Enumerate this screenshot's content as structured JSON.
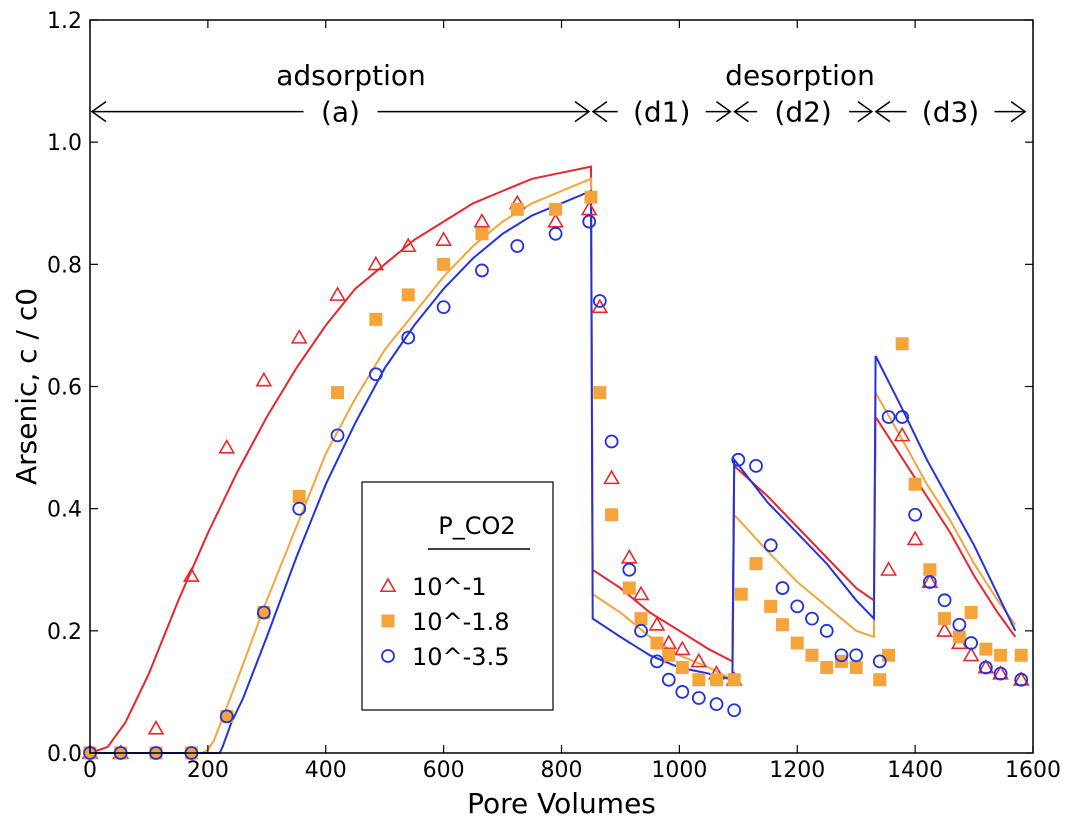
{
  "chart_data": {
    "type": "scatter",
    "title": "",
    "xlabel": "Pore Volumes",
    "ylabel": "Arsenic, c / c0",
    "xlim": [
      0,
      1600
    ],
    "ylim": [
      0,
      1.2
    ],
    "xticks": [
      0,
      200,
      400,
      600,
      800,
      1000,
      1200,
      1400,
      1600
    ],
    "yticks": [
      0.0,
      0.2,
      0.4,
      0.6,
      0.8,
      1.0,
      1.2
    ],
    "xtick_labels": [
      "0",
      "200",
      "400",
      "600",
      "800",
      "1000",
      "1200",
      "1400",
      "1600"
    ],
    "ytick_labels": [
      "0.0",
      "0.2",
      "0.4",
      "0.6",
      "0.8",
      "1.0",
      "1.2"
    ],
    "grid": false,
    "legend": {
      "title": "P_CO2",
      "placement": "lower-center",
      "entries": [
        "10^-1",
        "10^-1.8",
        "10^-3.5"
      ]
    },
    "annotations": {
      "phases": [
        {
          "label": "adsorption",
          "y": 1.05
        },
        {
          "label": "desorption",
          "y": 1.05
        }
      ],
      "segments": [
        {
          "label": "(a)",
          "x0": 0,
          "x1": 850
        },
        {
          "label": "(d1)",
          "x0": 850,
          "x1": 1090
        },
        {
          "label": "(d2)",
          "x0": 1090,
          "x1": 1330
        },
        {
          "label": "(d3)",
          "x0": 1330,
          "x1": 1590
        }
      ]
    },
    "series": [
      {
        "name": "10^-1",
        "color": "#e8262b",
        "marker": "triangle",
        "points": [
          [
            0,
            0
          ],
          [
            52,
            0
          ],
          [
            112,
            0.04
          ],
          [
            172,
            0.29
          ],
          [
            232,
            0.5
          ],
          [
            295,
            0.61
          ],
          [
            355,
            0.68
          ],
          [
            420,
            0.75
          ],
          [
            485,
            0.8
          ],
          [
            540,
            0.83
          ],
          [
            600,
            0.84
          ],
          [
            665,
            0.87
          ],
          [
            725,
            0.9
          ],
          [
            790,
            0.87
          ],
          [
            847,
            0.89
          ],
          [
            865,
            0.73
          ],
          [
            885,
            0.45
          ],
          [
            915,
            0.32
          ],
          [
            935,
            0.26
          ],
          [
            962,
            0.21
          ],
          [
            982,
            0.18
          ],
          [
            1005,
            0.17
          ],
          [
            1033,
            0.15
          ],
          [
            1063,
            0.13
          ],
          [
            1093,
            0.12
          ],
          [
            1355,
            0.3
          ],
          [
            1378,
            0.52
          ],
          [
            1400,
            0.35
          ],
          [
            1425,
            0.28
          ],
          [
            1450,
            0.2
          ],
          [
            1475,
            0.18
          ],
          [
            1495,
            0.16
          ],
          [
            1520,
            0.14
          ],
          [
            1545,
            0.13
          ],
          [
            1580,
            0.12
          ]
        ],
        "fit": [
          [
            0,
            0
          ],
          [
            30,
            0.01
          ],
          [
            60,
            0.05
          ],
          [
            100,
            0.13
          ],
          [
            150,
            0.25
          ],
          [
            200,
            0.36
          ],
          [
            250,
            0.46
          ],
          [
            300,
            0.55
          ],
          [
            350,
            0.63
          ],
          [
            400,
            0.7
          ],
          [
            450,
            0.76
          ],
          [
            500,
            0.8
          ],
          [
            550,
            0.84
          ],
          [
            600,
            0.87
          ],
          [
            650,
            0.9
          ],
          [
            700,
            0.92
          ],
          [
            750,
            0.94
          ],
          [
            800,
            0.95
          ],
          [
            850,
            0.96
          ],
          [
            853,
            0.3
          ],
          [
            900,
            0.27
          ],
          [
            950,
            0.23
          ],
          [
            1000,
            0.2
          ],
          [
            1050,
            0.17
          ],
          [
            1090,
            0.15
          ],
          [
            1093,
            0.47
          ],
          [
            1150,
            0.42
          ],
          [
            1200,
            0.37
          ],
          [
            1250,
            0.32
          ],
          [
            1300,
            0.27
          ],
          [
            1330,
            0.25
          ],
          [
            1333,
            0.55
          ],
          [
            1380,
            0.48
          ],
          [
            1420,
            0.42
          ],
          [
            1460,
            0.36
          ],
          [
            1500,
            0.29
          ],
          [
            1540,
            0.23
          ],
          [
            1570,
            0.19
          ]
        ]
      },
      {
        "name": "10^-1.8",
        "color": "#f5a43c",
        "marker": "square",
        "points": [
          [
            0,
            0
          ],
          [
            52,
            0
          ],
          [
            112,
            0
          ],
          [
            172,
            0
          ],
          [
            232,
            0.06
          ],
          [
            295,
            0.23
          ],
          [
            355,
            0.42
          ],
          [
            420,
            0.59
          ],
          [
            485,
            0.71
          ],
          [
            540,
            0.75
          ],
          [
            600,
            0.8
          ],
          [
            665,
            0.85
          ],
          [
            725,
            0.89
          ],
          [
            790,
            0.89
          ],
          [
            850,
            0.91
          ],
          [
            865,
            0.59
          ],
          [
            885,
            0.39
          ],
          [
            915,
            0.27
          ],
          [
            935,
            0.22
          ],
          [
            962,
            0.18
          ],
          [
            982,
            0.16
          ],
          [
            1005,
            0.14
          ],
          [
            1033,
            0.12
          ],
          [
            1063,
            0.12
          ],
          [
            1093,
            0.12
          ],
          [
            1105,
            0.26
          ],
          [
            1130,
            0.31
          ],
          [
            1155,
            0.24
          ],
          [
            1175,
            0.21
          ],
          [
            1200,
            0.18
          ],
          [
            1225,
            0.16
          ],
          [
            1250,
            0.14
          ],
          [
            1275,
            0.15
          ],
          [
            1300,
            0.14
          ],
          [
            1340,
            0.12
          ],
          [
            1355,
            0.16
          ],
          [
            1378,
            0.67
          ],
          [
            1400,
            0.44
          ],
          [
            1425,
            0.3
          ],
          [
            1450,
            0.22
          ],
          [
            1475,
            0.19
          ],
          [
            1495,
            0.23
          ],
          [
            1520,
            0.17
          ],
          [
            1545,
            0.16
          ],
          [
            1580,
            0.16
          ]
        ],
        "fit": [
          [
            0,
            0
          ],
          [
            190,
            0
          ],
          [
            200,
            0.005
          ],
          [
            210,
            0.02
          ],
          [
            230,
            0.07
          ],
          [
            250,
            0.12
          ],
          [
            300,
            0.25
          ],
          [
            350,
            0.37
          ],
          [
            400,
            0.49
          ],
          [
            450,
            0.58
          ],
          [
            500,
            0.66
          ],
          [
            550,
            0.72
          ],
          [
            600,
            0.78
          ],
          [
            650,
            0.83
          ],
          [
            700,
            0.87
          ],
          [
            750,
            0.9
          ],
          [
            800,
            0.92
          ],
          [
            850,
            0.94
          ],
          [
            853,
            0.26
          ],
          [
            900,
            0.23
          ],
          [
            950,
            0.19
          ],
          [
            1000,
            0.16
          ],
          [
            1050,
            0.14
          ],
          [
            1090,
            0.12
          ],
          [
            1093,
            0.39
          ],
          [
            1150,
            0.33
          ],
          [
            1200,
            0.28
          ],
          [
            1250,
            0.24
          ],
          [
            1300,
            0.2
          ],
          [
            1330,
            0.19
          ],
          [
            1333,
            0.59
          ],
          [
            1380,
            0.51
          ],
          [
            1420,
            0.44
          ],
          [
            1460,
            0.38
          ],
          [
            1500,
            0.31
          ],
          [
            1540,
            0.25
          ],
          [
            1570,
            0.21
          ]
        ]
      },
      {
        "name": "10^-3.5",
        "color": "#2233dd",
        "marker": "circle",
        "points": [
          [
            0,
            0
          ],
          [
            52,
            0
          ],
          [
            112,
            0
          ],
          [
            172,
            0
          ],
          [
            232,
            0.06
          ],
          [
            295,
            0.23
          ],
          [
            355,
            0.4
          ],
          [
            420,
            0.52
          ],
          [
            485,
            0.62
          ],
          [
            540,
            0.68
          ],
          [
            600,
            0.73
          ],
          [
            665,
            0.79
          ],
          [
            725,
            0.83
          ],
          [
            790,
            0.85
          ],
          [
            847,
            0.87
          ],
          [
            865,
            0.74
          ],
          [
            885,
            0.51
          ],
          [
            915,
            0.3
          ],
          [
            935,
            0.2
          ],
          [
            962,
            0.15
          ],
          [
            982,
            0.12
          ],
          [
            1005,
            0.1
          ],
          [
            1033,
            0.09
          ],
          [
            1063,
            0.08
          ],
          [
            1093,
            0.07
          ],
          [
            1100,
            0.48
          ],
          [
            1130,
            0.47
          ],
          [
            1155,
            0.34
          ],
          [
            1175,
            0.27
          ],
          [
            1200,
            0.24
          ],
          [
            1225,
            0.22
          ],
          [
            1250,
            0.2
          ],
          [
            1275,
            0.16
          ],
          [
            1300,
            0.16
          ],
          [
            1340,
            0.15
          ],
          [
            1355,
            0.55
          ],
          [
            1378,
            0.55
          ],
          [
            1400,
            0.39
          ],
          [
            1425,
            0.28
          ],
          [
            1450,
            0.25
          ],
          [
            1475,
            0.21
          ],
          [
            1495,
            0.18
          ],
          [
            1520,
            0.14
          ],
          [
            1545,
            0.13
          ],
          [
            1580,
            0.12
          ]
        ],
        "fit": [
          [
            0,
            0
          ],
          [
            220,
            0
          ],
          [
            225,
            0.01
          ],
          [
            240,
            0.05
          ],
          [
            260,
            0.09
          ],
          [
            300,
            0.19
          ],
          [
            350,
            0.32
          ],
          [
            400,
            0.44
          ],
          [
            450,
            0.54
          ],
          [
            500,
            0.63
          ],
          [
            550,
            0.7
          ],
          [
            600,
            0.76
          ],
          [
            650,
            0.81
          ],
          [
            700,
            0.85
          ],
          [
            750,
            0.88
          ],
          [
            800,
            0.9
          ],
          [
            850,
            0.92
          ],
          [
            853,
            0.22
          ],
          [
            900,
            0.19
          ],
          [
            950,
            0.16
          ],
          [
            1000,
            0.14
          ],
          [
            1050,
            0.13
          ],
          [
            1090,
            0.12
          ],
          [
            1093,
            0.48
          ],
          [
            1150,
            0.41
          ],
          [
            1200,
            0.36
          ],
          [
            1250,
            0.31
          ],
          [
            1300,
            0.25
          ],
          [
            1330,
            0.22
          ],
          [
            1333,
            0.65
          ],
          [
            1380,
            0.56
          ],
          [
            1420,
            0.48
          ],
          [
            1460,
            0.41
          ],
          [
            1500,
            0.34
          ],
          [
            1540,
            0.26
          ],
          [
            1570,
            0.2
          ]
        ]
      }
    ]
  }
}
